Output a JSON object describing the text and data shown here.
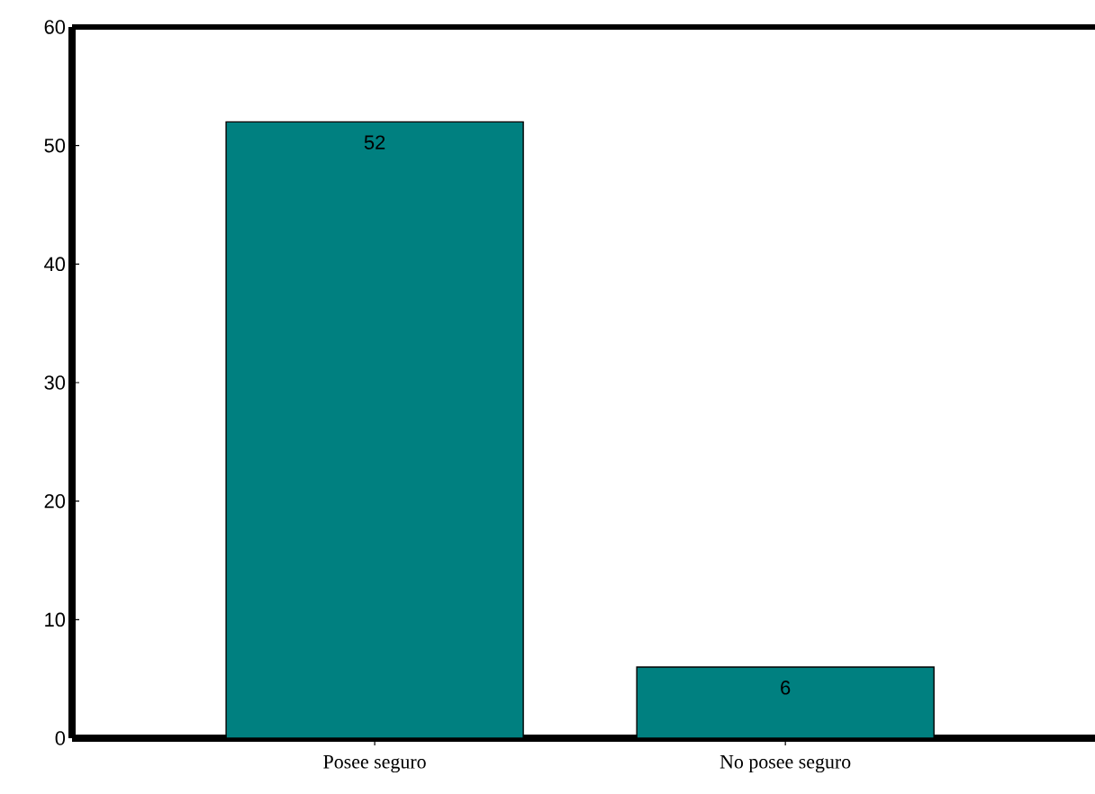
{
  "chart_data": {
    "type": "bar",
    "categories": [
      "Posee seguro",
      "No posee seguro"
    ],
    "values": [
      52,
      6
    ],
    "color": "#008080",
    "ylim": [
      0,
      60
    ],
    "yticks": [
      0,
      10,
      20,
      30,
      40,
      50,
      60
    ],
    "data_labels": true,
    "grid": false
  }
}
